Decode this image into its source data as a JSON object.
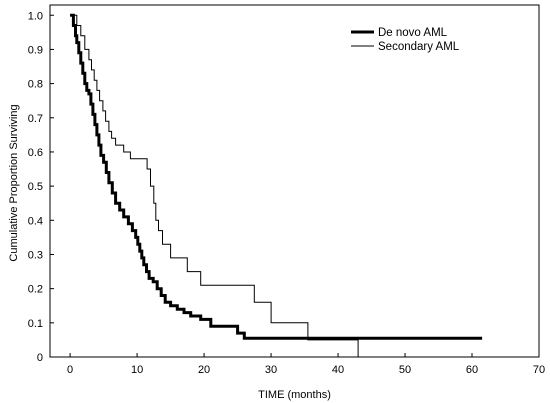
{
  "chart_data": {
    "type": "line",
    "title": "",
    "xlabel": "TIME (months)",
    "ylabel": "Cumulative Proportion Surviving",
    "xlim": [
      -3,
      70
    ],
    "ylim": [
      0,
      1.03
    ],
    "xticks": [
      0,
      10,
      20,
      30,
      40,
      50,
      60,
      70
    ],
    "yticks": [
      0,
      0.1,
      0.2,
      0.3,
      0.4,
      0.5,
      0.6,
      0.7,
      0.8,
      0.9,
      1.0
    ],
    "ytick_labels": [
      "0",
      "0.1",
      "0.2",
      "0.3",
      "0.4",
      "0.5",
      "0.6",
      "0.7",
      "0.8",
      "0.9",
      "1.0"
    ],
    "step": true,
    "grid": false,
    "legend_position": "top-right",
    "series": [
      {
        "name": "De novo AML",
        "color": "#000000",
        "weight": "bold",
        "x": [
          0,
          0.5,
          0.8,
          1.0,
          1.3,
          1.6,
          1.9,
          2.2,
          2.5,
          2.8,
          3.1,
          3.4,
          3.7,
          4.0,
          4.3,
          4.6,
          5.0,
          5.4,
          5.8,
          6.3,
          6.8,
          7.4,
          8.0,
          8.7,
          9.3,
          9.8,
          10.1,
          10.4,
          10.7,
          11.0,
          11.4,
          11.8,
          12.4,
          13.0,
          13.6,
          14.2,
          15.0,
          16.0,
          17.0,
          18.0,
          19.5,
          21.0,
          23.0,
          25.0,
          26.0,
          61.5
        ],
        "y": [
          1.0,
          0.97,
          0.94,
          0.92,
          0.89,
          0.86,
          0.83,
          0.8,
          0.78,
          0.77,
          0.74,
          0.71,
          0.68,
          0.65,
          0.62,
          0.59,
          0.57,
          0.54,
          0.51,
          0.48,
          0.45,
          0.43,
          0.41,
          0.39,
          0.37,
          0.35,
          0.33,
          0.31,
          0.29,
          0.27,
          0.25,
          0.23,
          0.22,
          0.2,
          0.18,
          0.16,
          0.15,
          0.14,
          0.13,
          0.12,
          0.11,
          0.09,
          0.09,
          0.07,
          0.055,
          0.055
        ]
      },
      {
        "name": "Secondary AML",
        "color": "#000000",
        "weight": "thin",
        "x": [
          0,
          1.0,
          1.6,
          2.2,
          2.8,
          3.2,
          3.6,
          4.0,
          4.4,
          4.9,
          5.3,
          5.8,
          6.2,
          6.8,
          8.0,
          9.0,
          10.5,
          11.5,
          12.0,
          12.5,
          12.8,
          13.2,
          13.8,
          15.0,
          17.5,
          19.5,
          22.0,
          27.5,
          30.0,
          35.5,
          43.0
        ],
        "y": [
          1.0,
          0.97,
          0.94,
          0.9,
          0.87,
          0.84,
          0.81,
          0.78,
          0.75,
          0.72,
          0.69,
          0.66,
          0.64,
          0.62,
          0.6,
          0.58,
          0.58,
          0.55,
          0.5,
          0.45,
          0.4,
          0.37,
          0.33,
          0.29,
          0.25,
          0.21,
          0.21,
          0.16,
          0.1,
          0.05,
          0.0
        ]
      }
    ]
  }
}
